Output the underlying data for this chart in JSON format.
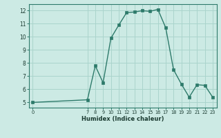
{
  "x": [
    0,
    7,
    8,
    9,
    10,
    11,
    12,
    13,
    14,
    15,
    16,
    17,
    18,
    19,
    20,
    21,
    22,
    23
  ],
  "y": [
    5.0,
    5.2,
    7.8,
    6.5,
    9.9,
    10.9,
    11.85,
    11.9,
    12.0,
    11.95,
    12.1,
    10.7,
    7.5,
    6.4,
    5.4,
    6.35,
    6.3,
    5.4
  ],
  "line_color": "#2d7a6a",
  "bg_color": "#cceae4",
  "grid_color": "#aad4cc",
  "grid_color2": "#c0ddd8",
  "xlabel": "Humidex (Indice chaleur)",
  "xlim": [
    -0.5,
    23.5
  ],
  "ylim": [
    4.6,
    12.5
  ],
  "yticks": [
    5,
    6,
    7,
    8,
    9,
    10,
    11,
    12
  ],
  "xticks": [
    0,
    7,
    8,
    9,
    10,
    11,
    12,
    13,
    14,
    15,
    16,
    17,
    18,
    19,
    20,
    21,
    22,
    23
  ],
  "marker_size": 2.5,
  "line_width": 1.0
}
